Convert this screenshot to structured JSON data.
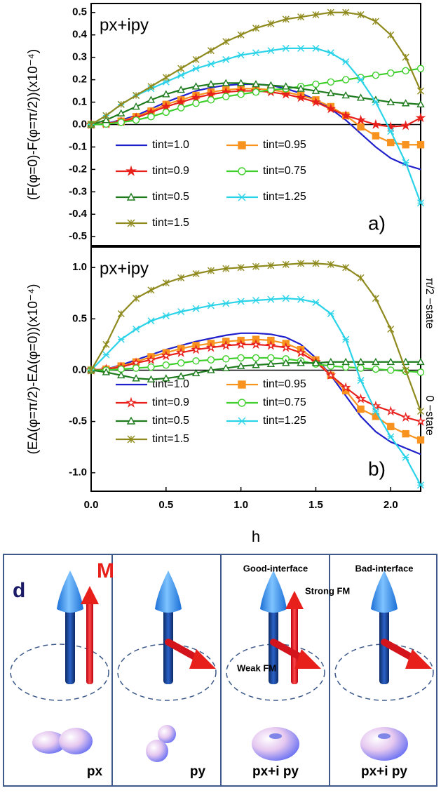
{
  "chart_data": [
    {
      "type": "line",
      "xlim": [
        0,
        2.2
      ],
      "ylim": [
        -0.54,
        0.54
      ],
      "yticks": [
        {
          "value": -0.5,
          "label": "-0.5"
        },
        -0.4,
        -0.3,
        -0.2,
        -0.1,
        {
          "value": 0,
          "label": "0.0"
        },
        0.1,
        0.2,
        0.3,
        0.4,
        0.5
      ],
      "y_label": "(F(φ=0)-F(φ=π/2))(x10⁻⁴)",
      "annotations": [
        "px+ipy",
        "a)"
      ],
      "x": [
        0,
        0.1,
        0.2,
        0.3,
        0.4,
        0.5,
        0.6,
        0.7,
        0.8,
        0.9,
        1.0,
        1.1,
        1.2,
        1.3,
        1.4,
        1.5,
        1.6,
        1.7,
        1.8,
        1.9,
        2.0,
        2.1,
        2.2
      ],
      "series": [
        {
          "name": "tint=1.0",
          "color": "#1f1fcc",
          "marker": "none",
          "values": [
            0,
            0.005,
            0.02,
            0.04,
            0.07,
            0.1,
            0.125,
            0.15,
            0.165,
            0.175,
            0.18,
            0.18,
            0.175,
            0.16,
            0.14,
            0.11,
            0.07,
            0.02,
            -0.04,
            -0.1,
            -0.15,
            -0.18,
            -0.2
          ]
        },
        {
          "name": "tint=0.95",
          "color": "#f7931e",
          "marker": "square",
          "filled": true,
          "values": [
            0,
            0.004,
            0.015,
            0.035,
            0.06,
            0.09,
            0.11,
            0.13,
            0.145,
            0.155,
            0.16,
            0.16,
            0.155,
            0.145,
            0.13,
            0.11,
            0.08,
            0.04,
            -0.01,
            -0.05,
            -0.08,
            -0.09,
            -0.09
          ]
        },
        {
          "name": "tint=0.9",
          "color": "#e8201c",
          "marker": "star",
          "filled": true,
          "values": [
            0,
            0.003,
            0.013,
            0.03,
            0.055,
            0.08,
            0.1,
            0.12,
            0.135,
            0.145,
            0.15,
            0.15,
            0.145,
            0.135,
            0.12,
            0.1,
            0.07,
            0.04,
            0.02,
            0,
            -0.01,
            -0.005,
            0.03
          ]
        },
        {
          "name": "tint=0.75",
          "color": "#3ecf2a",
          "marker": "circle",
          "filled": false,
          "values": [
            0,
            0.002,
            0.01,
            0.02,
            0.035,
            0.055,
            0.075,
            0.095,
            0.11,
            0.125,
            0.135,
            0.145,
            0.155,
            0.16,
            0.17,
            0.18,
            0.19,
            0.2,
            0.21,
            0.22,
            0.23,
            0.24,
            0.25
          ]
        },
        {
          "name": "tint=0.5",
          "color": "#1e7b1e",
          "marker": "triangle",
          "filled": false,
          "values": [
            0,
            0.02,
            0.05,
            0.08,
            0.11,
            0.135,
            0.155,
            0.17,
            0.18,
            0.185,
            0.185,
            0.18,
            0.175,
            0.17,
            0.16,
            0.15,
            0.14,
            0.13,
            0.12,
            0.11,
            0.1,
            0.095,
            0.09
          ]
        },
        {
          "name": "tint=1.25",
          "color": "#2bd3e8",
          "marker": "x",
          "filled": false,
          "values": [
            0,
            0.04,
            0.09,
            0.13,
            0.16,
            0.19,
            0.22,
            0.25,
            0.27,
            0.29,
            0.31,
            0.32,
            0.33,
            0.34,
            0.34,
            0.34,
            0.32,
            0.28,
            0.2,
            0.1,
            -0.03,
            -0.17,
            -0.35
          ]
        },
        {
          "name": "tint=1.5",
          "color": "#8f8a1e",
          "marker": "asterisk",
          "filled": false,
          "values": [
            0,
            0.04,
            0.09,
            0.13,
            0.17,
            0.21,
            0.25,
            0.29,
            0.33,
            0.37,
            0.4,
            0.43,
            0.45,
            0.47,
            0.48,
            0.49,
            0.5,
            0.5,
            0.49,
            0.46,
            0.4,
            0.3,
            0.15
          ]
        }
      ]
    },
    {
      "type": "line",
      "xlim": [
        0,
        2.2
      ],
      "ylim": [
        -1.18,
        1.2
      ],
      "xticks": [
        {
          "value": 0,
          "label": "0.0"
        },
        0.5,
        {
          "value": 1,
          "label": "1.0"
        },
        1.5,
        {
          "value": 2,
          "label": "2.0"
        }
      ],
      "yticks": [
        {
          "value": -1,
          "label": "-1.0"
        },
        -0.5,
        {
          "value": 0,
          "label": "0.0"
        },
        0.5,
        {
          "value": 1,
          "label": "1.0"
        }
      ],
      "x_label": "h",
      "y_label": "(EΔ(φ=π/2)-EΔ(φ=0))(x10⁻⁴)",
      "annotations": [
        "px+ipy",
        "b)",
        "π/2 −state",
        "0 −state"
      ],
      "x": [
        0,
        0.1,
        0.2,
        0.3,
        0.4,
        0.5,
        0.6,
        0.7,
        0.8,
        0.9,
        1.0,
        1.1,
        1.2,
        1.3,
        1.4,
        1.5,
        1.6,
        1.7,
        1.8,
        1.9,
        2.0,
        2.1,
        2.2
      ],
      "series": [
        {
          "name": "tint=1.0",
          "color": "#1f1fcc",
          "marker": "none",
          "values": [
            0,
            0.01,
            0.05,
            0.1,
            0.15,
            0.2,
            0.24,
            0.28,
            0.31,
            0.34,
            0.36,
            0.36,
            0.35,
            0.32,
            0.25,
            0.12,
            -0.05,
            -0.25,
            -0.45,
            -0.6,
            -0.7,
            -0.76,
            -0.82
          ]
        },
        {
          "name": "tint=0.95",
          "color": "#f7931e",
          "marker": "square",
          "filled": true,
          "values": [
            0,
            0.01,
            0.04,
            0.08,
            0.13,
            0.17,
            0.21,
            0.24,
            0.26,
            0.28,
            0.29,
            0.3,
            0.29,
            0.26,
            0.2,
            0.1,
            -0.05,
            -0.2,
            -0.38,
            -0.45,
            -0.55,
            -0.62,
            -0.68
          ]
        },
        {
          "name": "tint=0.9",
          "color": "#e8201c",
          "marker": "star",
          "filled": false,
          "values": [
            0,
            0.01,
            0.03,
            0.07,
            0.1,
            0.14,
            0.17,
            0.2,
            0.22,
            0.24,
            0.25,
            0.25,
            0.24,
            0.22,
            0.17,
            0.08,
            -0.05,
            -0.17,
            -0.28,
            -0.35,
            -0.4,
            -0.46,
            -0.5
          ]
        },
        {
          "name": "tint=0.75",
          "color": "#3ecf2a",
          "marker": "circle",
          "filled": false,
          "values": [
            0,
            0,
            0.01,
            0.02,
            0.03,
            0.05,
            0.07,
            0.09,
            0.1,
            0.11,
            0.12,
            0.12,
            0.12,
            0.11,
            0.09,
            0.06,
            0.04,
            0.03,
            0.02,
            0.01,
            0,
            -0.01,
            -0.02
          ]
        },
        {
          "name": "tint=0.5",
          "color": "#1e7b1e",
          "marker": "triangle",
          "filled": false,
          "values": [
            0,
            -0.02,
            -0.05,
            -0.08,
            -0.09,
            -0.08,
            -0.06,
            -0.03,
            0,
            0.02,
            0.04,
            0.05,
            0.06,
            0.07,
            0.07,
            0.07,
            0.08,
            0.08,
            0.08,
            0.08,
            0.08,
            0.08,
            0.08
          ]
        },
        {
          "name": "tint=1.25",
          "color": "#2bd3e8",
          "marker": "x",
          "filled": false,
          "values": [
            0,
            0.15,
            0.3,
            0.4,
            0.48,
            0.53,
            0.57,
            0.6,
            0.63,
            0.65,
            0.67,
            0.68,
            0.69,
            0.7,
            0.69,
            0.66,
            0.55,
            0.3,
            -0.1,
            -0.4,
            -0.65,
            -0.85,
            -1.12
          ]
        },
        {
          "name": "tint=1.5",
          "color": "#8f8a1e",
          "marker": "asterisk",
          "filled": false,
          "values": [
            0,
            0.25,
            0.55,
            0.7,
            0.78,
            0.85,
            0.9,
            0.94,
            0.97,
            0.99,
            1.0,
            1.01,
            1.02,
            1.03,
            1.04,
            1.04,
            1.03,
            1.0,
            0.9,
            0.7,
            0.4,
            0,
            -0.4
          ]
        }
      ]
    }
  ],
  "diagram": {
    "panels": [
      {
        "labels": [
          "d",
          "M"
        ],
        "orbital": "px"
      },
      {
        "labels": [],
        "orbital": "py"
      },
      {
        "labels": [
          "Good-interface",
          "Strong FM",
          "Weak FM"
        ],
        "orbital": "px+i py"
      },
      {
        "labels": [
          "Bad-interface"
        ],
        "orbital": "px+i py"
      }
    ]
  }
}
